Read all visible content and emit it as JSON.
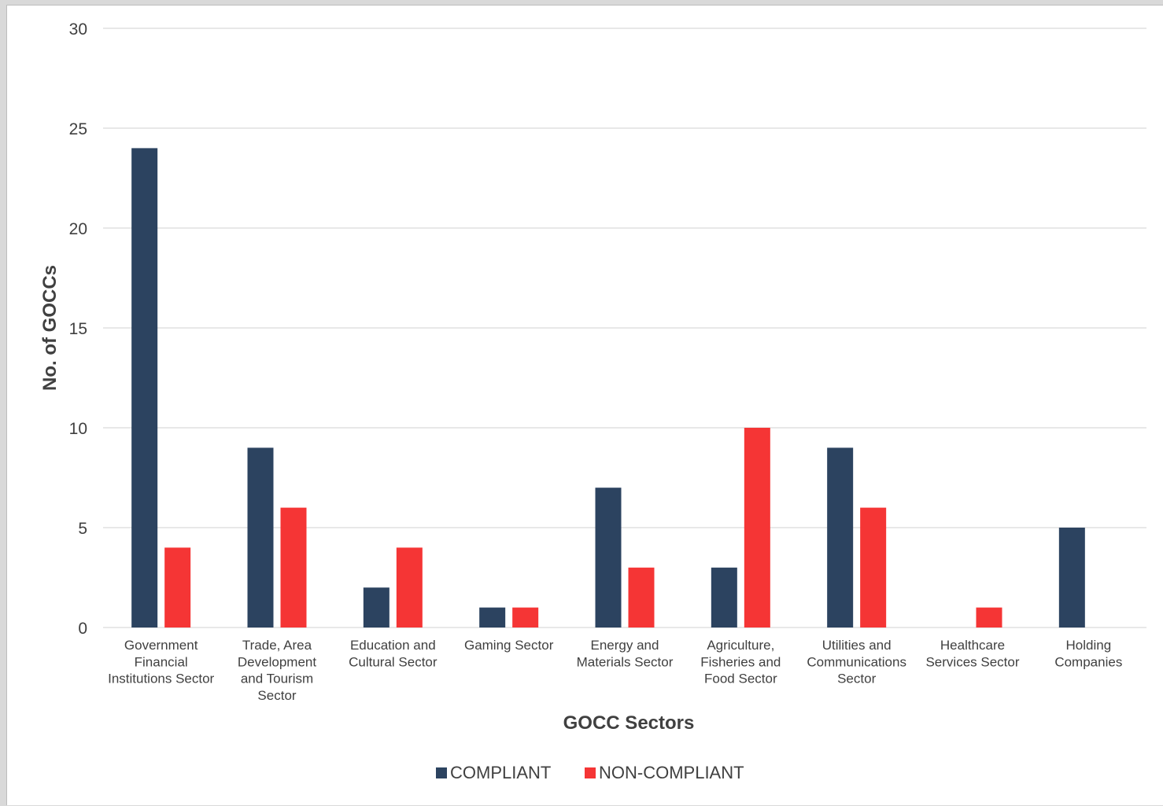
{
  "chart_data": {
    "type": "bar",
    "title": "",
    "xlabel": "GOCC Sectors",
    "ylabel": "No. of GOCCs",
    "ylim": [
      0,
      30
    ],
    "yticks": [
      0,
      5,
      10,
      15,
      20,
      25,
      30
    ],
    "grid": true,
    "legend_position": "bottom",
    "categories": [
      [
        "Government",
        "Financial",
        "Institutions Sector"
      ],
      [
        "Trade, Area",
        "Development",
        "and Tourism",
        "Sector"
      ],
      [
        "Education and",
        "Cultural Sector"
      ],
      [
        "Gaming Sector"
      ],
      [
        "Energy and",
        "Materials Sector"
      ],
      [
        "Agriculture,",
        "Fisheries and",
        "Food Sector"
      ],
      [
        "Utilities and",
        "Communications",
        "Sector"
      ],
      [
        "Healthcare",
        "Services Sector"
      ],
      [
        "Holding",
        "Companies"
      ]
    ],
    "series": [
      {
        "name": "COMPLIANT",
        "color": "#2c4360",
        "values": [
          24,
          9,
          2,
          1,
          7,
          3,
          9,
          0,
          5
        ]
      },
      {
        "name": "NON-COMPLIANT",
        "color": "#f53535",
        "values": [
          4,
          6,
          4,
          1,
          3,
          10,
          6,
          1,
          0
        ]
      }
    ]
  }
}
